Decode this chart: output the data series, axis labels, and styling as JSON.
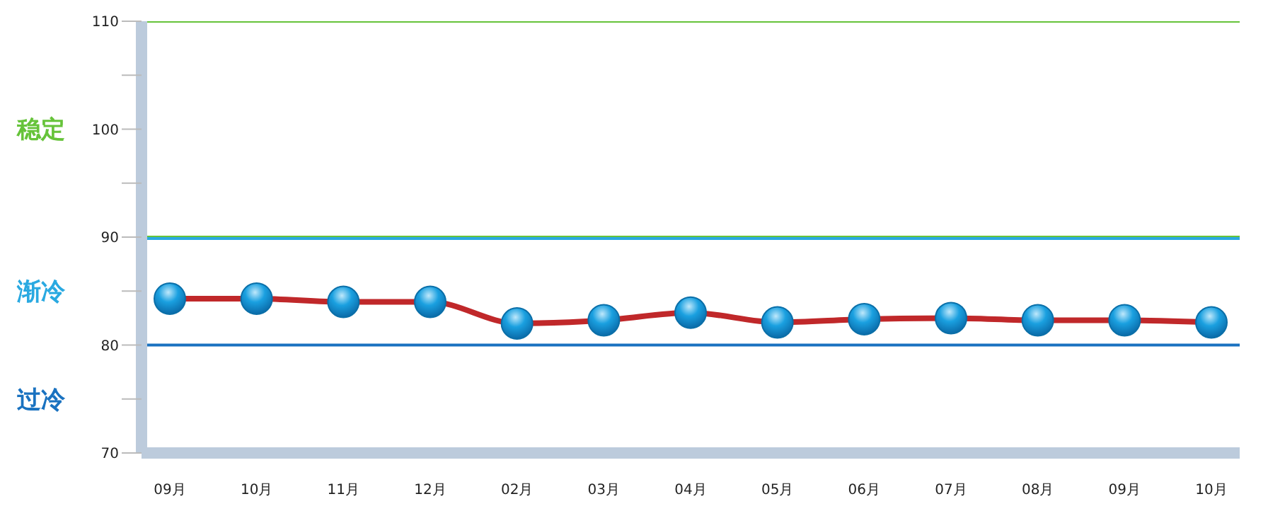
{
  "chart_data": {
    "type": "line",
    "categories": [
      "09月",
      "10月",
      "11月",
      "12月",
      "02月",
      "03月",
      "04月",
      "05月",
      "06月",
      "07月",
      "08月",
      "09月",
      "10月"
    ],
    "series": [
      {
        "color": "#c0282a",
        "values": [
          84.3,
          84.3,
          84.0,
          84.0,
          82.0,
          82.3,
          83.0,
          82.1,
          82.4,
          82.5,
          82.3,
          82.3,
          82.1
        ]
      }
    ],
    "ylim": [
      70,
      110
    ],
    "yticks": [
      70,
      {
        "value": 75,
        "label": null
      },
      80,
      {
        "value": 85,
        "label": null
      },
      90,
      {
        "value": 95,
        "label": null
      },
      100,
      {
        "value": 105,
        "label": null
      },
      110
    ],
    "ref_lines": [
      {
        "axis": "y",
        "value": 110,
        "color": "#66c33a"
      },
      {
        "axis": "y",
        "value": 90,
        "color": "#66c33a"
      },
      {
        "axis": "y",
        "value": 90,
        "color": "#29a9e1"
      },
      {
        "axis": "y",
        "value": 80,
        "color": "#1a72c0"
      }
    ],
    "annotations": [
      "稳定",
      "渐冷",
      "过冷"
    ],
    "marker": "circle",
    "line_style": "solid"
  }
}
